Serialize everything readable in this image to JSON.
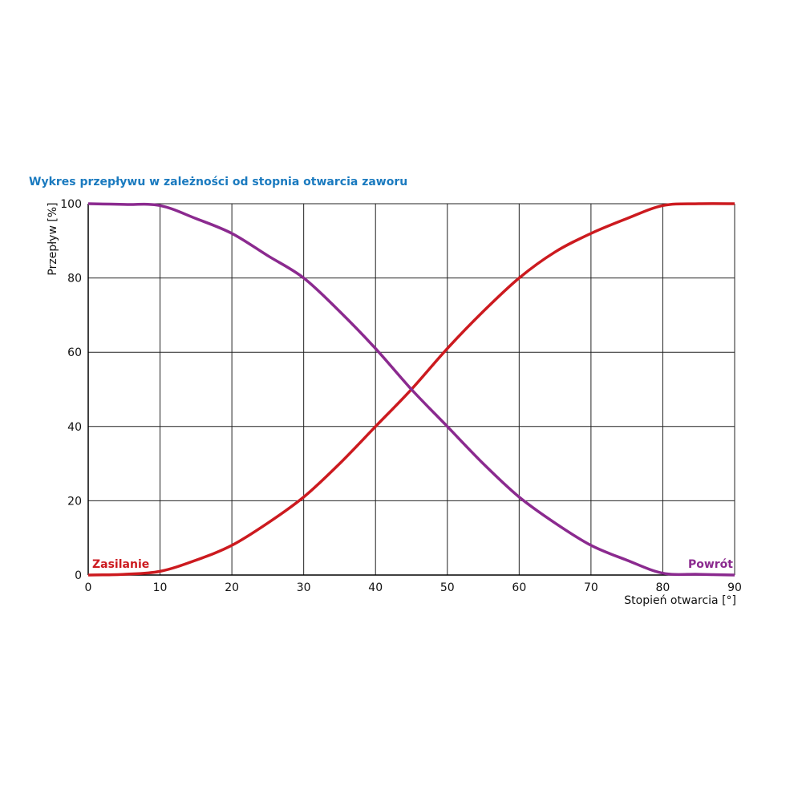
{
  "chart_data": {
    "type": "line",
    "title": "Wykres przepływu w zależności od stopnia otwarcia zaworu",
    "x_label": "Stopień otwarcia [°]",
    "y_label": "Przepływ [%]",
    "x": [
      0,
      5,
      10,
      15,
      20,
      25,
      30,
      35,
      40,
      45,
      50,
      55,
      60,
      65,
      70,
      75,
      80,
      85,
      90
    ],
    "series": [
      {
        "name": "Zasilanie",
        "color": "#cc1a1f",
        "values": [
          0,
          0.2,
          1,
          4,
          8,
          14,
          21,
          30,
          40,
          50,
          61,
          71,
          80,
          87,
          92,
          96,
          99.5,
          100,
          100
        ]
      },
      {
        "name": "Powrót",
        "color": "#8b2a8f",
        "values": [
          100,
          99.8,
          99.5,
          96,
          92,
          86,
          80,
          71,
          61,
          50,
          40,
          30,
          21,
          14,
          8,
          4,
          0.5,
          0.2,
          0
        ]
      }
    ],
    "xlim": [
      0,
      90
    ],
    "ylim": [
      0,
      100
    ],
    "xticks": [
      0,
      10,
      20,
      30,
      40,
      50,
      60,
      70,
      80,
      90
    ],
    "yticks": [
      0,
      20,
      40,
      60,
      80,
      100
    ],
    "grid": true
  }
}
